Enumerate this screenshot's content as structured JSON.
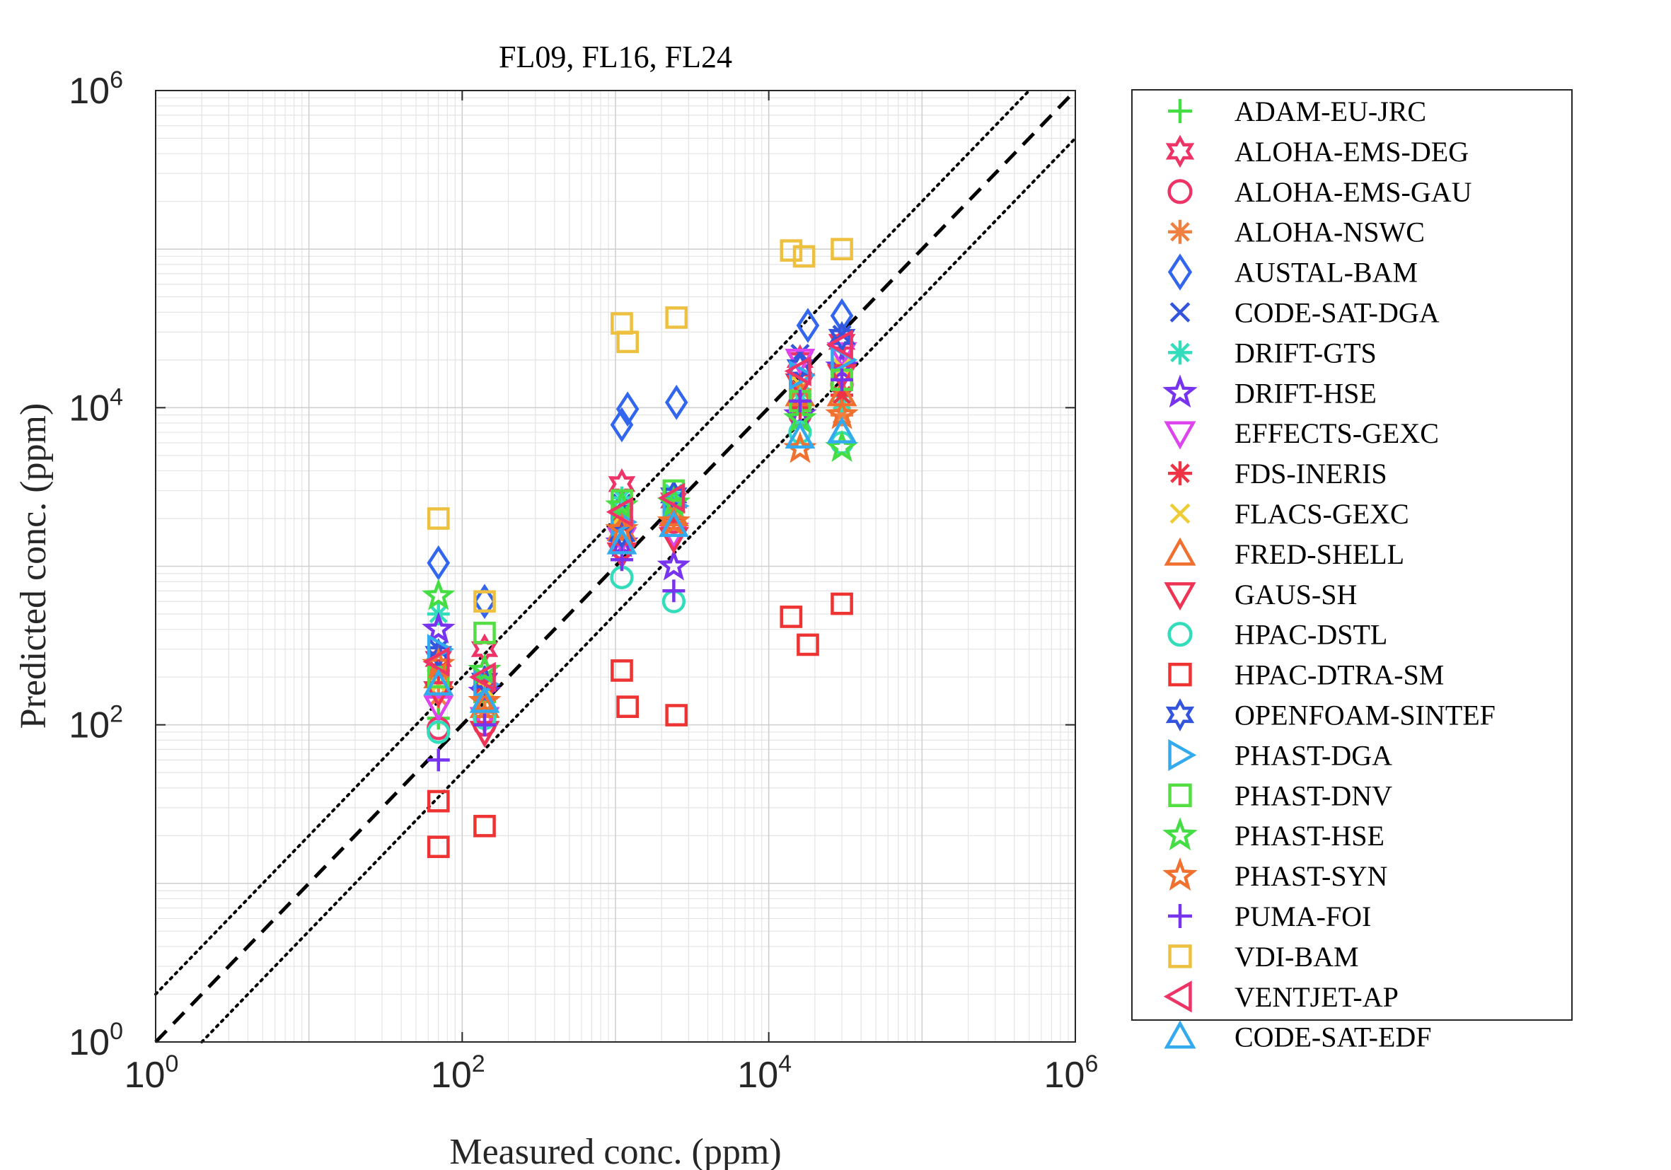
{
  "chart_data": {
    "type": "scatter",
    "title": "FL09, FL16, FL24",
    "xlabel": "Measured conc. (ppm)",
    "ylabel": "Predicted conc. (ppm)",
    "xscale": "log",
    "yscale": "log",
    "xlim": [
      1,
      1000000
    ],
    "ylim": [
      1,
      1000000
    ],
    "grid": true,
    "legend_position": "outside-right",
    "ticks": [
      {
        "value": 1,
        "base": "10",
        "exp": "0"
      },
      {
        "value": 100,
        "base": "10",
        "exp": "2"
      },
      {
        "value": 10000,
        "base": "10",
        "exp": "4"
      },
      {
        "value": 1000000,
        "base": "10",
        "exp": "6"
      }
    ],
    "reference_lines": [
      {
        "name": "1:1 line",
        "style": "dashed",
        "factor": 1
      },
      {
        "name": "factor 2 upper",
        "style": "dotted",
        "factor": 2
      },
      {
        "name": "factor 2 lower",
        "style": "dotted",
        "factor": 0.5
      }
    ],
    "series": [
      {
        "name": "ADAM-EU-JRC",
        "color": "#44dd44",
        "marker": "plus",
        "x": [
          70,
          140,
          1100,
          2400,
          16000,
          30000
        ],
        "y": [
          110,
          140,
          2300,
          2500,
          11000,
          13000
        ]
      },
      {
        "name": "ALOHA-EMS-DEG",
        "color": "#ee3366",
        "marker": "hexagram",
        "x": [
          70,
          140,
          1100,
          2400,
          16000,
          30000
        ],
        "y": [
          260,
          300,
          3300,
          2600,
          20000,
          26000
        ]
      },
      {
        "name": "ALOHA-EMS-GAU",
        "color": "#ee3366",
        "marker": "circle",
        "x": [
          70,
          140,
          1100,
          2400,
          16000,
          30000
        ],
        "y": [
          95,
          100,
          1300,
          1900,
          9000,
          14000
        ]
      },
      {
        "name": "ALOHA-NSWC",
        "color": "#f08040",
        "marker": "asterisk",
        "x": [
          70,
          140,
          1100,
          2400,
          16000,
          30000
        ],
        "y": [
          150,
          120,
          2000,
          2200,
          13000,
          9000
        ]
      },
      {
        "name": "AUSTAL-BAM",
        "color": "#3366ee",
        "marker": "diamond",
        "x": [
          70,
          140,
          1100,
          1200,
          2500,
          18000,
          30000
        ],
        "y": [
          1050,
          600,
          7800,
          9800,
          10800,
          33000,
          38000
        ]
      },
      {
        "name": "CODE-SAT-DGA",
        "color": "#3355dd",
        "marker": "x",
        "x": [
          70,
          140,
          1100,
          2400,
          16000,
          30000
        ],
        "y": [
          300,
          150,
          2500,
          2600,
          22000,
          29000
        ]
      },
      {
        "name": "DRIFT-GTS",
        "color": "#33ddbb",
        "marker": "asterisk",
        "x": [
          70,
          140,
          1100,
          2400,
          16000,
          30000
        ],
        "y": [
          500,
          200,
          2700,
          2900,
          12000,
          11000
        ]
      },
      {
        "name": "DRIFT-HSE",
        "color": "#7733ee",
        "marker": "pentagram",
        "x": [
          70,
          140,
          1100,
          2400,
          16000,
          30000
        ],
        "y": [
          400,
          160,
          1400,
          1000,
          9000,
          18000
        ]
      },
      {
        "name": "EFFECTS-GEXC",
        "color": "#dd44ee",
        "marker": "tri-down",
        "x": [
          70,
          140,
          1100,
          2400,
          16000,
          30000
        ],
        "y": [
          130,
          110,
          1500,
          1600,
          20000,
          22000
        ]
      },
      {
        "name": "FDS-INERIS",
        "color": "#ee3344",
        "marker": "asterisk",
        "x": [
          70,
          140,
          1100,
          2400,
          16000,
          30000
        ],
        "y": [
          220,
          180,
          1800,
          2000,
          10000,
          12000
        ]
      },
      {
        "name": "FLACS-GEXC",
        "color": "#eecc33",
        "marker": "x",
        "x": [
          70,
          140,
          1100,
          2400,
          16000,
          30000
        ],
        "y": [
          180,
          170,
          2100,
          2300,
          14000,
          18000
        ]
      },
      {
        "name": "FRED-SHELL",
        "color": "#f07030",
        "marker": "tri-up",
        "x": [
          70,
          140,
          1100,
          2400,
          16000,
          30000
        ],
        "y": [
          200,
          130,
          1700,
          2100,
          12000,
          12000
        ]
      },
      {
        "name": "GAUS-SH",
        "color": "#ee3355",
        "marker": "tri-down",
        "x": [
          70,
          140,
          1100,
          2400,
          16000,
          30000
        ],
        "y": [
          160,
          90,
          1200,
          1500,
          14000,
          16000
        ]
      },
      {
        "name": "HPAC-DSTL",
        "color": "#33ddbb",
        "marker": "circle",
        "x": [
          70,
          140,
          1100,
          2400,
          16000,
          30000
        ],
        "y": [
          90,
          110,
          850,
          600,
          7000,
          6000
        ]
      },
      {
        "name": "HPAC-DTRA-SM",
        "color": "#ee3333",
        "marker": "square",
        "x": [
          70,
          70,
          140,
          1100,
          1200,
          2500,
          14000,
          18000,
          30000
        ],
        "y": [
          17,
          33,
          23,
          220,
          130,
          115,
          480,
          320,
          580
        ]
      },
      {
        "name": "OPENFOAM-SINTEF",
        "color": "#3355dd",
        "marker": "hexagram",
        "x": [
          70,
          140,
          1100,
          2400,
          16000,
          30000
        ],
        "y": [
          280,
          190,
          1600,
          2800,
          18000,
          28000
        ]
      },
      {
        "name": "PHAST-DGA",
        "color": "#33aaee",
        "marker": "tri-right",
        "x": [
          70,
          140,
          1100,
          2400,
          16000,
          30000
        ],
        "y": [
          300,
          180,
          1900,
          2400,
          16000,
          20000
        ]
      },
      {
        "name": "PHAST-DNV",
        "color": "#55dd44",
        "marker": "square",
        "x": [
          70,
          140,
          1100,
          2400,
          16000,
          30000
        ],
        "y": [
          200,
          380,
          2600,
          3000,
          11000,
          15000
        ]
      },
      {
        "name": "PHAST-HSE",
        "color": "#44dd44",
        "marker": "pentagram",
        "x": [
          70,
          140,
          1100,
          2400,
          16000,
          30000
        ],
        "y": [
          650,
          220,
          2400,
          2500,
          8500,
          5600
        ]
      },
      {
        "name": "PHAST-SYN",
        "color": "#f07030",
        "marker": "pentagram",
        "x": [
          70,
          140,
          1100,
          2400,
          16000,
          30000
        ],
        "y": [
          240,
          140,
          1700,
          1900,
          5500,
          9000
        ]
      },
      {
        "name": "PUMA-FOI",
        "color": "#7733ee",
        "marker": "plus",
        "x": [
          70,
          140,
          1100,
          2400,
          16000,
          30000
        ],
        "y": [
          60,
          100,
          1100,
          700,
          11000,
          15000
        ]
      },
      {
        "name": "VDI-BAM",
        "color": "#eec040",
        "marker": "square",
        "x": [
          70,
          140,
          1100,
          1200,
          2500,
          14000,
          17000,
          30000
        ],
        "y": [
          2000,
          600,
          34000,
          26000,
          37000,
          98000,
          90000,
          100000
        ]
      },
      {
        "name": "VENTJET-AP",
        "color": "#ee3366",
        "marker": "tri-left",
        "x": [
          70,
          140,
          1100,
          2400,
          16000,
          30000
        ],
        "y": [
          250,
          200,
          2200,
          2700,
          17000,
          25000
        ]
      },
      {
        "name": "CODE-SAT-EDF",
        "color": "#33aaee",
        "marker": "tri-up",
        "x": [
          70,
          140,
          1100,
          2400,
          16000,
          30000
        ],
        "y": [
          180,
          140,
          1400,
          1800,
          6500,
          7000
        ]
      }
    ]
  }
}
